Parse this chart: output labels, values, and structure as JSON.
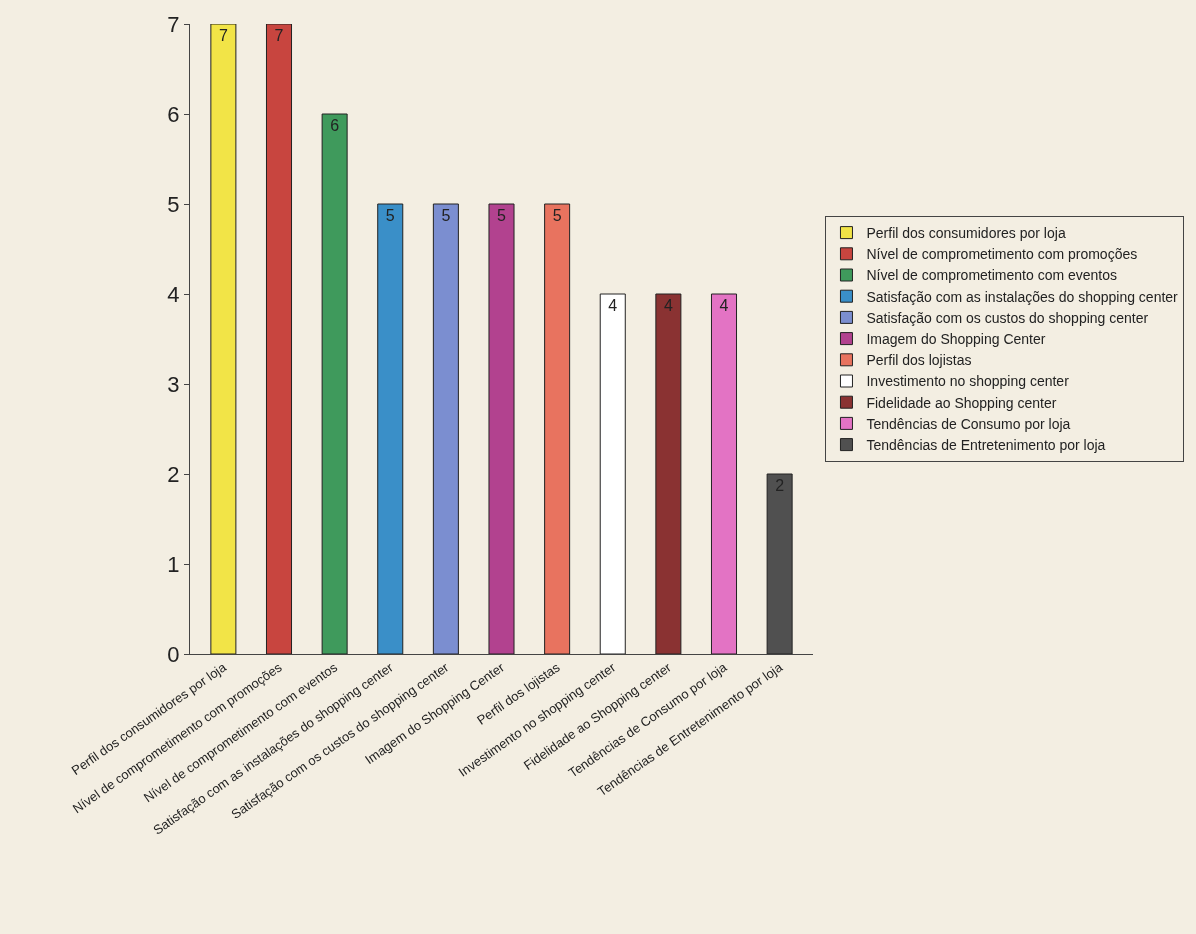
{
  "chart_data": {
    "type": "bar",
    "categories": [
      "Perfil dos consumidores por loja",
      "Nível de comprometimento com promoções",
      "Nível de comprometimento com eventos",
      "Satisfação com as instalações do shopping center",
      "Satisfação com os custos do shopping center",
      "Imagem do Shopping Center",
      "Perfil dos lojistas",
      "Investimento no shopping center",
      "Fidelidade ao Shopping center",
      "Tendências de Consumo por loja",
      "Tendências de Entretenimento por loja"
    ],
    "series": [
      {
        "name": "Perfil dos consumidores por loja",
        "color": "#f2e447",
        "values": [
          7,
          null,
          null,
          null,
          null,
          null,
          null,
          null,
          null,
          null,
          null
        ]
      },
      {
        "name": "Nível de comprometimento com promoções",
        "color": "#c8453f",
        "values": [
          null,
          7,
          null,
          null,
          null,
          null,
          null,
          null,
          null,
          null,
          null
        ]
      },
      {
        "name": "Nível de comprometimento com eventos",
        "color": "#3f9a5c",
        "values": [
          null,
          null,
          6,
          null,
          null,
          null,
          null,
          null,
          null,
          null,
          null
        ]
      },
      {
        "name": "Satisfação com as instalações do shopping center",
        "color": "#3a8fc8",
        "values": [
          null,
          null,
          null,
          5,
          null,
          null,
          null,
          null,
          null,
          null,
          null
        ]
      },
      {
        "name": "Satisfação com os custos do shopping center",
        "color": "#7b8ed0",
        "values": [
          null,
          null,
          null,
          null,
          5,
          null,
          null,
          null,
          null,
          null,
          null
        ]
      },
      {
        "name": "Imagem do Shopping Center",
        "color": "#b2428f",
        "values": [
          null,
          null,
          null,
          null,
          null,
          5,
          null,
          null,
          null,
          null,
          null
        ]
      },
      {
        "name": "Perfil dos lojistas",
        "color": "#e8735f",
        "values": [
          null,
          null,
          null,
          null,
          null,
          null,
          5,
          null,
          null,
          null,
          null
        ]
      },
      {
        "name": "Investimento no shopping center",
        "color": "#ffffff",
        "values": [
          null,
          null,
          null,
          null,
          null,
          null,
          null,
          4,
          null,
          null,
          null
        ]
      },
      {
        "name": "Fidelidade ao Shopping center",
        "color": "#8a3232",
        "values": [
          null,
          null,
          null,
          null,
          null,
          null,
          null,
          null,
          4,
          null,
          null
        ]
      },
      {
        "name": "Tendências de Consumo por loja",
        "color": "#e373c4",
        "values": [
          null,
          null,
          null,
          null,
          null,
          null,
          null,
          null,
          null,
          4,
          null
        ]
      },
      {
        "name": "Tendências de Entretenimento por loja",
        "color": "#505050",
        "values": [
          null,
          null,
          null,
          null,
          null,
          null,
          null,
          null,
          null,
          null,
          2
        ]
      }
    ],
    "ylim": [
      0,
      7
    ],
    "yticks": [
      0,
      1,
      2,
      3,
      4,
      5,
      6,
      7
    ],
    "grid": false,
    "legend": "right",
    "data_labels": true
  }
}
